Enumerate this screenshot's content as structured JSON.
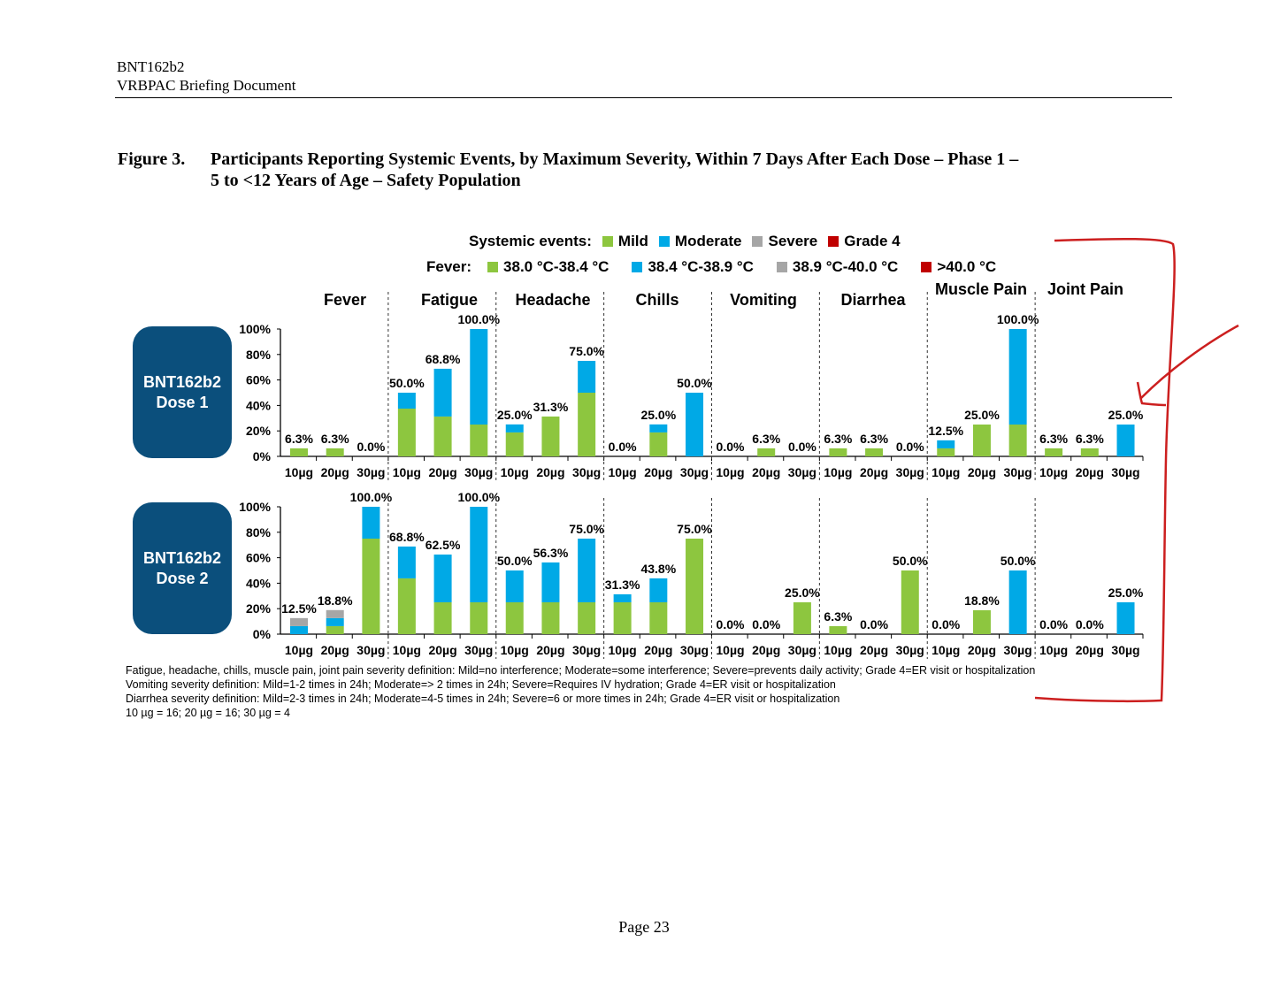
{
  "header": {
    "line1": "BNT162b2",
    "line2": "VRBPAC Briefing Document"
  },
  "figure": {
    "label": "Figure 3.",
    "title_line1": "Participants Reporting Systemic Events, by Maximum Severity, Within 7 Days After Each Dose – Phase 1 –",
    "title_line2": "5 to <12 Years of Age – Safety Population"
  },
  "legend": {
    "systemic_label": "Systemic events:",
    "systemic_items": [
      "Mild",
      "Moderate",
      "Severe",
      "Grade 4"
    ],
    "fever_label": "Fever:",
    "fever_items": [
      "38.0 °C-38.4 °C",
      "38.4 °C-38.9 °C",
      "38.9 °C-40.0 °C",
      ">40.0 °C"
    ],
    "colors": [
      "#8DC63F",
      "#00A9E6",
      "#A6A6A6",
      "#C00000"
    ]
  },
  "chart_data": {
    "type": "bar",
    "stacked": true,
    "categories": [
      "Fever",
      "Fatigue",
      "Headache",
      "Chills",
      "Vomiting",
      "Diarrhea",
      "Muscle Pain",
      "Joint Pain"
    ],
    "doses": [
      "10µg",
      "20µg",
      "30µg"
    ],
    "y_ticks": [
      "0%",
      "20%",
      "40%",
      "60%",
      "80%",
      "100%"
    ],
    "ylim": [
      0,
      100
    ],
    "severity_levels": [
      "Mild",
      "Moderate",
      "Severe",
      "Grade 4"
    ],
    "panels": [
      {
        "name": "BNT162b2 Dose 1",
        "values": [
          [
            [
              6.3,
              0,
              0
            ],
            [
              6.3,
              0,
              0
            ],
            [
              0,
              0,
              0
            ]
          ],
          [
            [
              37.5,
              12.5,
              0
            ],
            [
              31.3,
              37.5,
              0
            ],
            [
              25,
              75,
              0
            ]
          ],
          [
            [
              18.8,
              6.3,
              0
            ],
            [
              31.3,
              0,
              0
            ],
            [
              50,
              25,
              0
            ]
          ],
          [
            [
              0,
              0,
              0
            ],
            [
              18.8,
              6.3,
              0
            ],
            [
              0,
              50,
              0
            ]
          ],
          [
            [
              0,
              0,
              0
            ],
            [
              6.3,
              0,
              0
            ],
            [
              0,
              0,
              0
            ]
          ],
          [
            [
              6.3,
              0,
              0
            ],
            [
              6.3,
              0,
              0
            ],
            [
              0,
              0,
              0
            ]
          ],
          [
            [
              6.3,
              6.3,
              0
            ],
            [
              25,
              0,
              0
            ],
            [
              25,
              75,
              0
            ]
          ],
          [
            [
              6.3,
              0,
              0
            ],
            [
              6.3,
              0,
              0
            ],
            [
              0,
              25,
              0
            ]
          ]
        ],
        "labels": [
          [
            "6.3%",
            "6.3%",
            "0.0%"
          ],
          [
            "50.0%",
            "68.8%",
            "100.0%"
          ],
          [
            "25.0%",
            "31.3%",
            "75.0%"
          ],
          [
            "0.0%",
            "25.0%",
            "50.0%"
          ],
          [
            "0.0%",
            "6.3%",
            "0.0%"
          ],
          [
            "6.3%",
            "6.3%",
            "0.0%"
          ],
          [
            "12.5%",
            "25.0%",
            "100.0%"
          ],
          [
            "6.3%",
            "6.3%",
            "25.0%"
          ]
        ]
      },
      {
        "name": "BNT162b2 Dose 2",
        "values": [
          [
            [
              0,
              6.3,
              6.3
            ],
            [
              6.3,
              6.3,
              6.3
            ],
            [
              75,
              25,
              0
            ]
          ],
          [
            [
              43.8,
              25,
              0
            ],
            [
              25,
              37.5,
              0
            ],
            [
              25,
              75,
              0
            ]
          ],
          [
            [
              25,
              25,
              0
            ],
            [
              25,
              31.3,
              0
            ],
            [
              25,
              50,
              0
            ]
          ],
          [
            [
              25,
              6.3,
              0
            ],
            [
              25,
              18.8,
              0
            ],
            [
              75,
              0,
              0
            ]
          ],
          [
            [
              0,
              0,
              0
            ],
            [
              0,
              0,
              0
            ],
            [
              25,
              0,
              0
            ]
          ],
          [
            [
              6.3,
              0,
              0
            ],
            [
              0,
              0,
              0
            ],
            [
              50,
              0,
              0
            ]
          ],
          [
            [
              0,
              0,
              0
            ],
            [
              18.8,
              0,
              0
            ],
            [
              0,
              50,
              0
            ]
          ],
          [
            [
              0,
              0,
              0
            ],
            [
              0,
              0,
              0
            ],
            [
              0,
              25,
              0
            ]
          ]
        ],
        "labels": [
          [
            "12.5%",
            "18.8%",
            "100.0%"
          ],
          [
            "68.8%",
            "62.5%",
            "100.0%"
          ],
          [
            "50.0%",
            "56.3%",
            "75.0%"
          ],
          [
            "31.3%",
            "43.8%",
            "75.0%"
          ],
          [
            "0.0%",
            "0.0%",
            "25.0%"
          ],
          [
            "6.3%",
            "0.0%",
            "50.0%"
          ],
          [
            "0.0%",
            "18.8%",
            "50.0%"
          ],
          [
            "0.0%",
            "0.0%",
            "25.0%"
          ]
        ]
      }
    ]
  },
  "dose_boxes": [
    {
      "line1": "BNT162b2",
      "line2": "Dose 1"
    },
    {
      "line1": "BNT162b2",
      "line2": "Dose 2"
    }
  ],
  "footnotes": [
    "Fatigue, headache, chills, muscle pain, joint pain severity definition: Mild=no interference; Moderate=some interference; Severe=prevents daily activity; Grade 4=ER visit or hospitalization",
    "Vomiting severity definition: Mild=1-2 times in 24h; Moderate=> 2 times in 24h; Severe=Requires IV hydration; Grade 4=ER visit or hospitalization",
    "Diarrhea severity definition: Mild=2-3 times in 24h; Moderate=4-5 times in 24h; Severe=6 or more times in 24h; Grade 4=ER visit or hospitalization",
    "10 µg = 16; 20 µg = 16; 30 µg = 4"
  ],
  "page_number": "Page 23",
  "annotation_color": "#CC1F1F"
}
